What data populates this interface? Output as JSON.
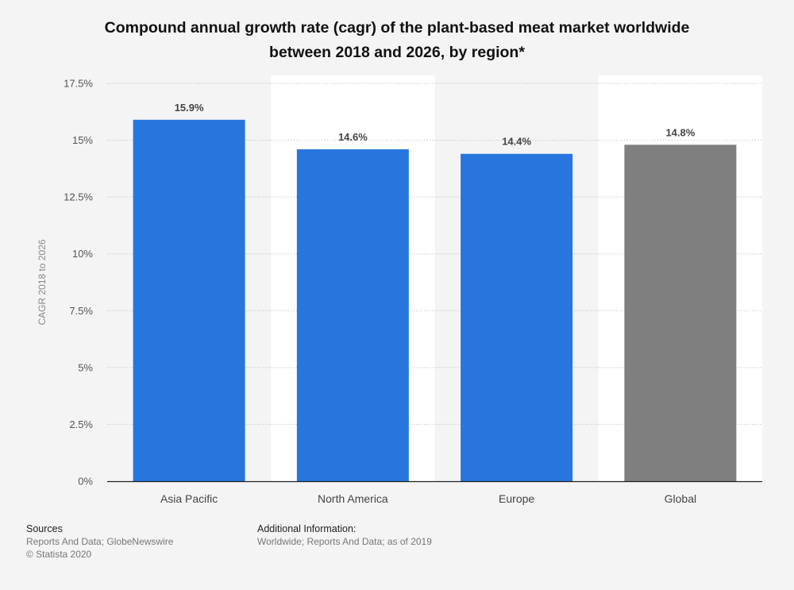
{
  "chart_data": {
    "type": "bar",
    "title": "Compound annual growth rate (cagr) of the plant-based meat market worldwide between 2018 and 2026, by region*",
    "title_lines": [
      "Compound annual growth rate (cagr) of the plant-based meat market worldwide",
      "between 2018 and 2026, by region*"
    ],
    "categories": [
      "Asia Pacific",
      "North America",
      "Europe",
      "Global"
    ],
    "values": [
      15.9,
      14.6,
      14.4,
      14.8
    ],
    "data_labels": [
      "15.9%",
      "14.6%",
      "14.4%",
      "14.8%"
    ],
    "bar_colors": [
      "#2776dd",
      "#2776dd",
      "#2776dd",
      "#7f7f7f"
    ],
    "xlabel": "",
    "ylabel": "CAGR 2018 to 2026",
    "ylim": [
      0,
      17.5
    ],
    "yticks": [
      0,
      2.5,
      5,
      7.5,
      10,
      12.5,
      15,
      17.5
    ],
    "ytick_labels": [
      "0%",
      "2.5%",
      "5%",
      "7.5%",
      "10%",
      "12.5%",
      "15%",
      "17.5%"
    ],
    "grid": true,
    "legend": "none"
  },
  "footer": {
    "sources_title": "Sources",
    "sources_lines": [
      "Reports And Data; GlobeNewswire",
      "© Statista 2020"
    ],
    "additional_title": "Additional Information:",
    "additional_lines": [
      "Worldwide; Reports And Data; as of 2019"
    ]
  }
}
